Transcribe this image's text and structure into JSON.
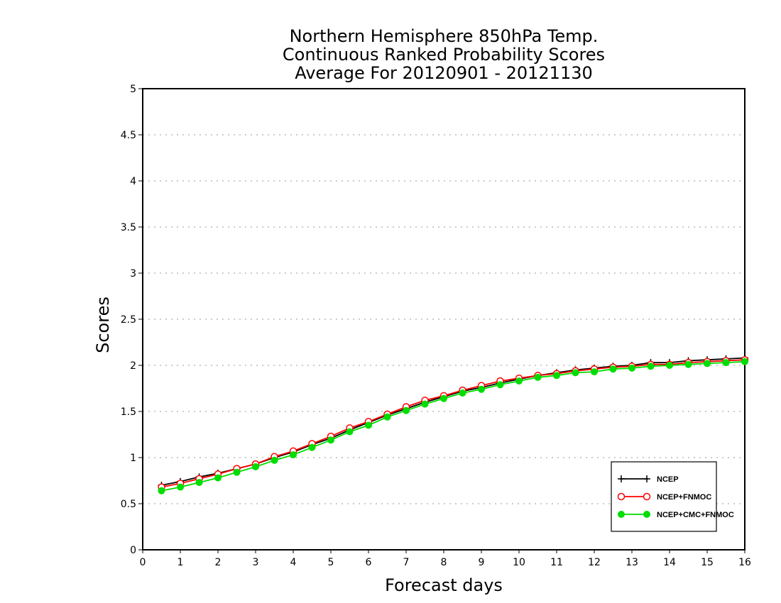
{
  "chart_data": {
    "type": "line",
    "title_lines": [
      "Northern Hemisphere 850hPa Temp.",
      "Continuous Ranked Probability Scores",
      "Average For 20120901 - 20121130"
    ],
    "xlabel": "Forecast days",
    "ylabel": "Scores",
    "xlim": [
      0,
      16
    ],
    "ylim": [
      0,
      5
    ],
    "x_ticks": [
      "0",
      "1",
      "2",
      "3",
      "4",
      "5",
      "6",
      "7",
      "8",
      "9",
      "10",
      "11",
      "12",
      "13",
      "14",
      "15",
      "16"
    ],
    "y_ticks": [
      "0",
      "0.5",
      "1",
      "1.5",
      "2",
      "2.5",
      "3",
      "3.5",
      "4",
      "4.5",
      "5"
    ],
    "grid": true,
    "legend_position": "bottom-right",
    "x": [
      0.5,
      1,
      1.5,
      2,
      2.5,
      3,
      3.5,
      4,
      4.5,
      5,
      5.5,
      6,
      6.5,
      7,
      7.5,
      8,
      8.5,
      9,
      9.5,
      10,
      10.5,
      11,
      11.5,
      12,
      12.5,
      13,
      13.5,
      14,
      14.5,
      15,
      15.5,
      16
    ],
    "series": [
      {
        "name": "NCEP",
        "color": "#000000",
        "marker": "plus",
        "values": [
          0.7,
          0.74,
          0.79,
          0.83,
          0.88,
          0.93,
          1.0,
          1.06,
          1.14,
          1.21,
          1.3,
          1.38,
          1.46,
          1.53,
          1.6,
          1.66,
          1.72,
          1.76,
          1.81,
          1.85,
          1.89,
          1.92,
          1.95,
          1.97,
          1.99,
          2.0,
          2.03,
          2.03,
          2.05,
          2.06,
          2.07,
          2.08
        ]
      },
      {
        "name": "NCEP+FNMOC",
        "color": "#ff0000",
        "marker": "open-circle",
        "values": [
          0.68,
          0.72,
          0.77,
          0.82,
          0.88,
          0.93,
          1.01,
          1.07,
          1.15,
          1.23,
          1.32,
          1.39,
          1.47,
          1.55,
          1.62,
          1.67,
          1.73,
          1.78,
          1.83,
          1.86,
          1.89,
          1.91,
          1.94,
          1.96,
          1.98,
          1.99,
          2.01,
          2.01,
          2.03,
          2.04,
          2.05,
          2.06
        ]
      },
      {
        "name": "NCEP+CMC+FNMOC",
        "color": "#00dd00",
        "marker": "filled-circle",
        "values": [
          0.64,
          0.68,
          0.73,
          0.78,
          0.84,
          0.9,
          0.97,
          1.03,
          1.11,
          1.19,
          1.28,
          1.35,
          1.44,
          1.51,
          1.58,
          1.64,
          1.7,
          1.74,
          1.79,
          1.83,
          1.87,
          1.89,
          1.92,
          1.93,
          1.96,
          1.97,
          1.99,
          2.0,
          2.01,
          2.02,
          2.03,
          2.04
        ]
      }
    ]
  }
}
